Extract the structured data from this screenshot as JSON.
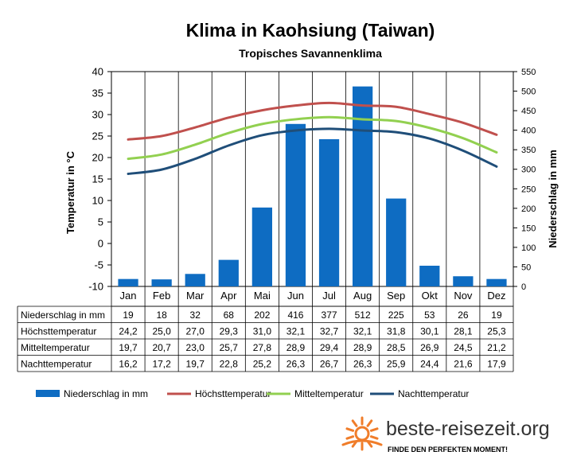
{
  "chart_data": {
    "type": "bar",
    "title": "Klima in Kaohsiung (Taiwan)",
    "subtitle": "Tropisches  Savannenklima",
    "ylabel_left": "Temperatur in °C",
    "ylabel_right": "Niederschlag in mm",
    "ylim_left": [
      -10,
      40
    ],
    "ylim_right": [
      0,
      550
    ],
    "yticks_left": [
      "40",
      "35",
      "30",
      "25",
      "20",
      "15",
      "10",
      "5",
      "0",
      "-5",
      "-10"
    ],
    "yticks_right": [
      "550",
      "500",
      "450",
      "400",
      "350",
      "300",
      "250",
      "200",
      "150",
      "100",
      "50",
      "0"
    ],
    "categories": [
      "Jan",
      "Feb",
      "Mar",
      "Apr",
      "Mai",
      "Jun",
      "Jul",
      "Aug",
      "Sep",
      "Okt",
      "Nov",
      "Dez"
    ],
    "precipitation": {
      "name": "Niederschlag in mm",
      "color": "#0e6cc2",
      "values": [
        19,
        18,
        32,
        68,
        202,
        416,
        377,
        512,
        225,
        53,
        26,
        19
      ],
      "labels": [
        "19",
        "18",
        "32",
        "68",
        "202",
        "416",
        "377",
        "512",
        "225",
        "53",
        "26",
        "19"
      ]
    },
    "series": [
      {
        "name": "Höchsttemperatur",
        "color": "#c0504d",
        "values": [
          24.2,
          25.0,
          27.0,
          29.3,
          31.0,
          32.1,
          32.7,
          32.1,
          31.8,
          30.1,
          28.1,
          25.3
        ],
        "labels": [
          "24,2",
          "25,0",
          "27,0",
          "29,3",
          "31,0",
          "32,1",
          "32,7",
          "32,1",
          "31,8",
          "30,1",
          "28,1",
          "25,3"
        ]
      },
      {
        "name": "Mitteltemperatur",
        "color": "#92d050",
        "values": [
          19.7,
          20.7,
          23.0,
          25.7,
          27.8,
          28.9,
          29.4,
          28.9,
          28.5,
          26.9,
          24.5,
          21.2
        ],
        "labels": [
          "19,7",
          "20,7",
          "23,0",
          "25,7",
          "27,8",
          "28,9",
          "29,4",
          "28,9",
          "28,5",
          "26,9",
          "24,5",
          "21,2"
        ]
      },
      {
        "name": "Nachttemperatur",
        "color": "#1f4e79",
        "values": [
          16.2,
          17.2,
          19.7,
          22.8,
          25.2,
          26.3,
          26.7,
          26.3,
          25.9,
          24.4,
          21.6,
          17.9
        ],
        "labels": [
          "16,2",
          "17,2",
          "19,7",
          "22,8",
          "25,2",
          "26,3",
          "26,7",
          "26,3",
          "25,9",
          "24,4",
          "21,6",
          "17,9"
        ]
      }
    ],
    "table_row_labels": [
      "Niederschlag in mm",
      "Höchsttemperatur",
      "Mitteltemperatur",
      "Nachttemperatur"
    ],
    "legend": [
      "Niederschlag in mm",
      "Höchsttemperatur",
      "Mitteltemperatur",
      "Nachttemperatur"
    ],
    "legend_position": "bottom",
    "grid": "vertical"
  },
  "branding": {
    "site": "beste-reisezeit.org",
    "tagline": "FINDE DEN PERFEKTEN MOMENT!",
    "logo_icon": "sun-icon",
    "logo_color": "#f07d2a"
  }
}
